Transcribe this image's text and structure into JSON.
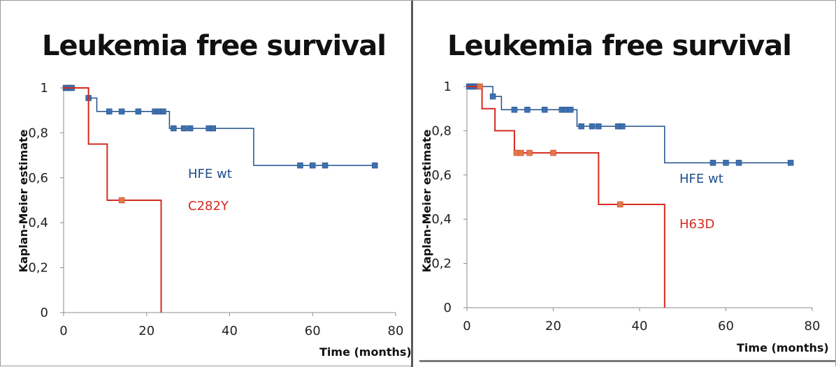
{
  "chart_data": [
    {
      "type": "line",
      "subtype": "kaplan-meier step",
      "title": "Leukemia free survival",
      "xlabel": "Time (months)",
      "ylabel": "Kaplan-Meier estimate",
      "xlim": [
        0,
        80
      ],
      "ylim": [
        0,
        1
      ],
      "xticks": [
        "0",
        "20",
        "40",
        "60",
        "80"
      ],
      "yticks": [
        "0",
        "0,2",
        "0,4",
        "0,6",
        "0,8",
        "1"
      ],
      "grid": false,
      "series": [
        {
          "name": "HFE wt",
          "color": "#1f4e8c",
          "marker_color": "#3f6fad",
          "steps": [
            [
              0,
              1
            ],
            [
              6,
              0.955
            ],
            [
              8,
              0.895
            ],
            [
              25.5,
              0.82
            ],
            [
              45.8,
              0.655
            ],
            [
              75,
              0.655
            ]
          ],
          "censored": [
            [
              0.5,
              1
            ],
            [
              1,
              1
            ],
            [
              1.5,
              1
            ],
            [
              2,
              1
            ],
            [
              6,
              0.955
            ],
            [
              11,
              0.895
            ],
            [
              14,
              0.895
            ],
            [
              18,
              0.895
            ],
            [
              22,
              0.895
            ],
            [
              23,
              0.895
            ],
            [
              24,
              0.895
            ],
            [
              26.5,
              0.82
            ],
            [
              29,
              0.82
            ],
            [
              30.5,
              0.82
            ],
            [
              35,
              0.82
            ],
            [
              36,
              0.82
            ],
            [
              57,
              0.655
            ],
            [
              60,
              0.655
            ],
            [
              63,
              0.655
            ],
            [
              75,
              0.655
            ]
          ]
        },
        {
          "name": "C282Y",
          "color": "#d42a20",
          "marker_color": "#e07a4a",
          "steps": [
            [
              0,
              1
            ],
            [
              6,
              0.75
            ],
            [
              10.5,
              0.5
            ],
            [
              23.5,
              0
            ]
          ],
          "censored": [
            [
              14,
              0.5
            ]
          ]
        }
      ]
    },
    {
      "type": "line",
      "subtype": "kaplan-meier step",
      "title": "Leukemia free survival",
      "xlabel": "Time (months)",
      "ylabel": "Kaplan-Meier estimate",
      "xlim": [
        0,
        80
      ],
      "ylim": [
        0,
        1
      ],
      "xticks": [
        "0",
        "20",
        "40",
        "60",
        "80"
      ],
      "yticks": [
        "0",
        "0,2",
        "0,4",
        "0,6",
        "0,8",
        "1"
      ],
      "grid": false,
      "series": [
        {
          "name": "HFE wt",
          "color": "#1f4e8c",
          "marker_color": "#3f6fad",
          "steps": [
            [
              0,
              1
            ],
            [
              6,
              0.955
            ],
            [
              8,
              0.895
            ],
            [
              25.5,
              0.82
            ],
            [
              45.8,
              0.655
            ],
            [
              75,
              0.655
            ]
          ],
          "censored": [
            [
              0.5,
              1
            ],
            [
              1,
              1
            ],
            [
              1.5,
              1
            ],
            [
              2,
              1
            ],
            [
              6,
              0.955
            ],
            [
              11,
              0.895
            ],
            [
              14,
              0.895
            ],
            [
              18,
              0.895
            ],
            [
              22,
              0.895
            ],
            [
              23,
              0.895
            ],
            [
              24,
              0.895
            ],
            [
              26.5,
              0.82
            ],
            [
              29,
              0.82
            ],
            [
              30.5,
              0.82
            ],
            [
              35,
              0.82
            ],
            [
              36,
              0.82
            ],
            [
              57,
              0.655
            ],
            [
              60,
              0.655
            ],
            [
              63,
              0.655
            ],
            [
              75,
              0.655
            ]
          ]
        },
        {
          "name": "H63D",
          "color": "#d42a20",
          "marker_color": "#e07a4a",
          "steps": [
            [
              0,
              1
            ],
            [
              3.5,
              0.9
            ],
            [
              6.5,
              0.8
            ],
            [
              11,
              0.7
            ],
            [
              30.5,
              0.467
            ],
            [
              45.8,
              0
            ]
          ],
          "censored": [
            [
              3,
              1
            ],
            [
              11.5,
              0.7
            ],
            [
              12.5,
              0.7
            ],
            [
              14.5,
              0.7
            ],
            [
              20,
              0.7
            ],
            [
              35.5,
              0.467
            ]
          ]
        }
      ]
    }
  ]
}
